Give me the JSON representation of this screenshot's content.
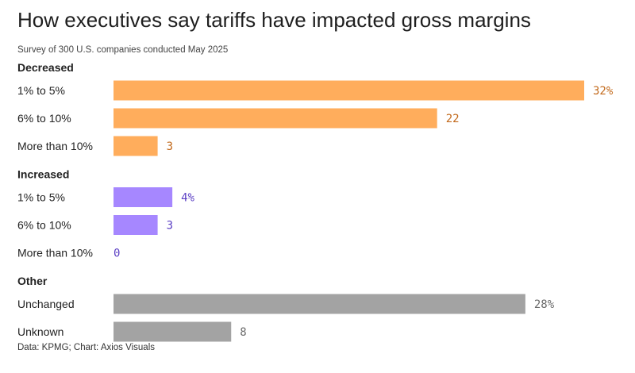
{
  "title": "How executives say tariffs have impacted gross margins",
  "subtitle": "Survey of 300 U.S. companies conducted May 2025",
  "footer": "Data: KPMG; Chart: Axios Visuals",
  "colors": {
    "decreased": "#ffad5c",
    "decreased_label": "#c2691b",
    "increased": "#a687ff",
    "increased_label": "#5b3fc4",
    "other": "#a3a3a3",
    "other_label": "#6b6b6b"
  },
  "chart_data": {
    "type": "bar",
    "orientation": "horizontal",
    "unit": "%",
    "xlim": [
      0,
      32
    ],
    "groups": [
      {
        "name": "Decreased",
        "color_key": "decreased",
        "bars": [
          {
            "label": "1% to 5%",
            "value": 32,
            "display": "32%"
          },
          {
            "label": "6% to 10%",
            "value": 22,
            "display": "22"
          },
          {
            "label": "More than 10%",
            "value": 3,
            "display": "3"
          }
        ]
      },
      {
        "name": "Increased",
        "color_key": "increased",
        "bars": [
          {
            "label": "1% to 5%",
            "value": 4,
            "display": "4%"
          },
          {
            "label": "6% to 10%",
            "value": 3,
            "display": "3"
          },
          {
            "label": "More than 10%",
            "value": 0,
            "display": "0"
          }
        ]
      },
      {
        "name": "Other",
        "color_key": "other",
        "bars": [
          {
            "label": "Unchanged",
            "value": 28,
            "display": "28%"
          },
          {
            "label": "Unknown",
            "value": 8,
            "display": "8"
          }
        ]
      }
    ]
  }
}
